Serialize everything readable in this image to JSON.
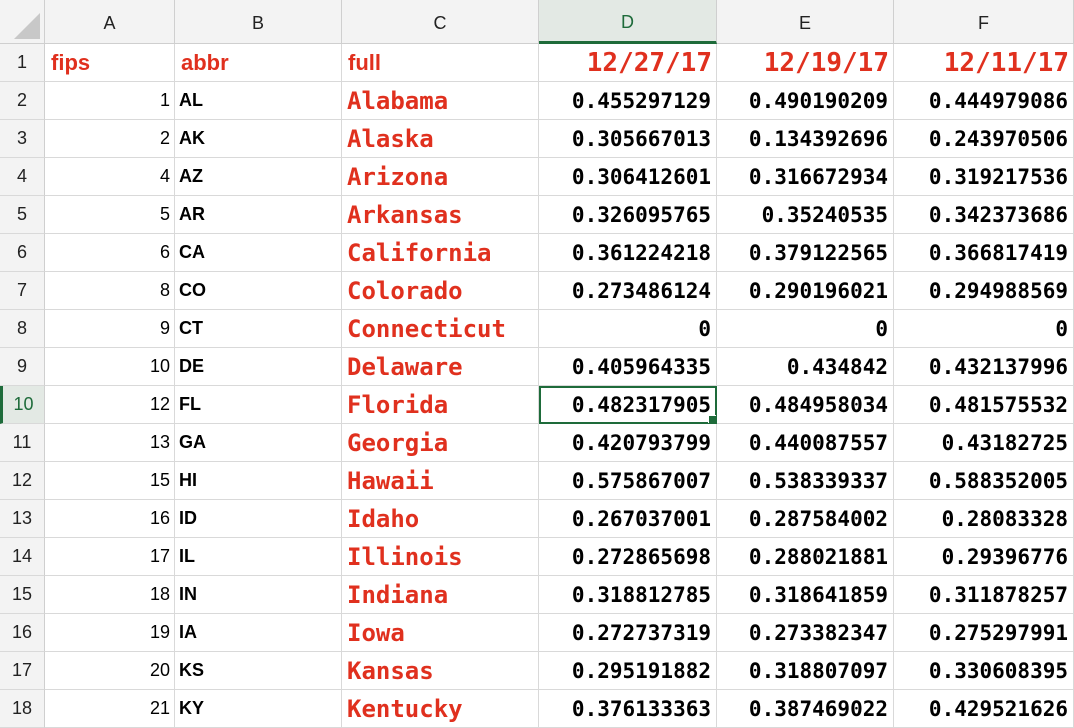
{
  "columns": [
    "A",
    "B",
    "C",
    "D",
    "E",
    "F"
  ],
  "header_row": {
    "fips": "fips",
    "abbr": "abbr",
    "full": "full",
    "dates": [
      "12/27/17",
      "12/19/17",
      "12/11/17"
    ]
  },
  "selected_cell": "D10",
  "rows": [
    {
      "num": "2",
      "fips": "1",
      "abbr": "AL",
      "full": "Alabama",
      "v": [
        "0.455297129",
        "0.490190209",
        "0.444979086"
      ]
    },
    {
      "num": "3",
      "fips": "2",
      "abbr": "AK",
      "full": "Alaska",
      "v": [
        "0.305667013",
        "0.134392696",
        "0.243970506"
      ]
    },
    {
      "num": "4",
      "fips": "4",
      "abbr": "AZ",
      "full": "Arizona",
      "v": [
        "0.306412601",
        "0.316672934",
        "0.319217536"
      ]
    },
    {
      "num": "5",
      "fips": "5",
      "abbr": "AR",
      "full": "Arkansas",
      "v": [
        "0.326095765",
        "0.35240535",
        "0.342373686"
      ]
    },
    {
      "num": "6",
      "fips": "6",
      "abbr": "CA",
      "full": "California",
      "v": [
        "0.361224218",
        "0.379122565",
        "0.366817419"
      ]
    },
    {
      "num": "7",
      "fips": "8",
      "abbr": "CO",
      "full": "Colorado",
      "v": [
        "0.273486124",
        "0.290196021",
        "0.294988569"
      ]
    },
    {
      "num": "8",
      "fips": "9",
      "abbr": "CT",
      "full": "Connecticut",
      "v": [
        "0",
        "0",
        "0"
      ]
    },
    {
      "num": "9",
      "fips": "10",
      "abbr": "DE",
      "full": "Delaware",
      "v": [
        "0.405964335",
        "0.434842",
        "0.432137996"
      ]
    },
    {
      "num": "10",
      "fips": "12",
      "abbr": "FL",
      "full": "Florida",
      "v": [
        "0.482317905",
        "0.484958034",
        "0.481575532"
      ]
    },
    {
      "num": "11",
      "fips": "13",
      "abbr": "GA",
      "full": "Georgia",
      "v": [
        "0.420793799",
        "0.440087557",
        "0.43182725"
      ]
    },
    {
      "num": "12",
      "fips": "15",
      "abbr": "HI",
      "full": "Hawaii",
      "v": [
        "0.575867007",
        "0.538339337",
        "0.588352005"
      ]
    },
    {
      "num": "13",
      "fips": "16",
      "abbr": "ID",
      "full": "Idaho",
      "v": [
        "0.267037001",
        "0.287584002",
        "0.28083328"
      ]
    },
    {
      "num": "14",
      "fips": "17",
      "abbr": "IL",
      "full": "Illinois",
      "v": [
        "0.272865698",
        "0.288021881",
        "0.29396776"
      ]
    },
    {
      "num": "15",
      "fips": "18",
      "abbr": "IN",
      "full": "Indiana",
      "v": [
        "0.318812785",
        "0.318641859",
        "0.311878257"
      ]
    },
    {
      "num": "16",
      "fips": "19",
      "abbr": "IA",
      "full": "Iowa",
      "v": [
        "0.272737319",
        "0.273382347",
        "0.275297991"
      ]
    },
    {
      "num": "17",
      "fips": "20",
      "abbr": "KS",
      "full": "Kansas",
      "v": [
        "0.295191882",
        "0.318807097",
        "0.330608395"
      ]
    },
    {
      "num": "18",
      "fips": "21",
      "abbr": "KY",
      "full": "Kentucky",
      "v": [
        "0.376133363",
        "0.387469022",
        "0.429521626"
      ]
    }
  ]
}
